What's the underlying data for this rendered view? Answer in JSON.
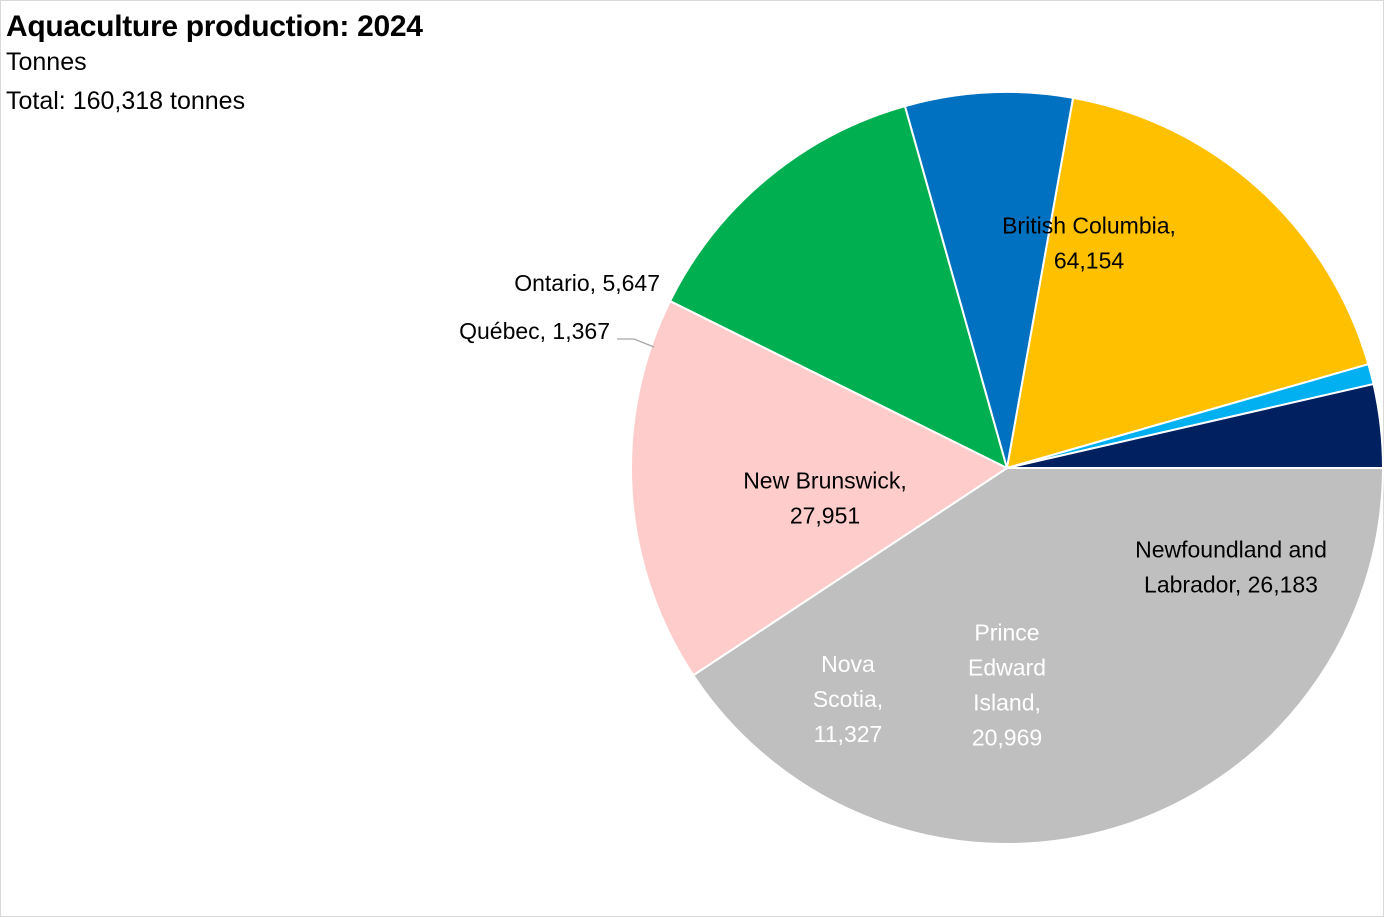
{
  "chart_data": {
    "type": "pie",
    "title": "Aquaculture production: 2024",
    "subtitle": "Tonnes",
    "total_label": "Total: 160,318 tonnes",
    "slices": [
      {
        "name": "British Columbia",
        "value": 64154,
        "value_label": "64,154",
        "color": "#bfbfbf",
        "text_color": "#000000",
        "label_lines": [
          "British Columbia,",
          "64,154"
        ]
      },
      {
        "name": "Newfoundland and Labrador",
        "value": 26183,
        "value_label": "26,183",
        "color": "#ffcccc",
        "text_color": "#000000",
        "label_lines": [
          "Newfoundland and",
          "Labrador, 26,183"
        ]
      },
      {
        "name": "Prince Edward Island",
        "value": 20969,
        "value_label": "20,969",
        "color": "#00b050",
        "text_color": "#ffffff",
        "label_lines": [
          "Prince",
          "Edward",
          "Island,",
          "20,969"
        ]
      },
      {
        "name": "Nova Scotia",
        "value": 11327,
        "value_label": "11,327",
        "color": "#0070c0",
        "text_color": "#ffffff",
        "label_lines": [
          "Nova",
          "Scotia,",
          "11,327"
        ]
      },
      {
        "name": "New Brunswick",
        "value": 27951,
        "value_label": "27,951",
        "color": "#ffc000",
        "text_color": "#000000",
        "label_lines": [
          "New Brunswick,",
          "27,951"
        ]
      },
      {
        "name": "Québec",
        "value": 1367,
        "value_label": "1,367",
        "color": "#00b0f0",
        "text_color": "#000000",
        "label_lines": [
          "Québec, 1,367"
        ]
      },
      {
        "name": "Ontario",
        "value": 5647,
        "value_label": "5,647",
        "color": "#002060",
        "text_color": "#000000",
        "label_lines": [
          "Ontario, 5,647"
        ]
      }
    ],
    "start_direction": "3 o'clock",
    "direction": "clockwise",
    "legend": "none"
  }
}
